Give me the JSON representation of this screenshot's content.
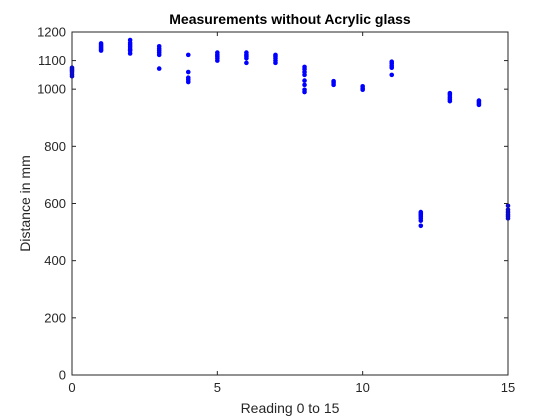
{
  "chart_data": {
    "type": "scatter",
    "title": "Measurements without Acrylic glass",
    "xlabel": "Reading 0 to 15",
    "ylabel": "Distance in mm",
    "xlim": [
      0,
      15
    ],
    "ylim": [
      0,
      1200
    ],
    "xticks": [
      0,
      5,
      10,
      15
    ],
    "yticks": [
      0,
      200,
      400,
      600,
      800,
      1000,
      1100,
      1200
    ],
    "grid": false,
    "marker_color": "#0000ff",
    "axis_color": "#262626",
    "series": [
      {
        "points": [
          [
            0,
            1045
          ],
          [
            0,
            1052
          ],
          [
            0,
            1060
          ],
          [
            0,
            1065
          ],
          [
            0,
            1070
          ],
          [
            0,
            1075
          ],
          [
            1,
            1135
          ],
          [
            1,
            1140
          ],
          [
            1,
            1145
          ],
          [
            1,
            1150
          ],
          [
            1,
            1155
          ],
          [
            1,
            1160
          ],
          [
            2,
            1125
          ],
          [
            2,
            1135
          ],
          [
            2,
            1140
          ],
          [
            2,
            1148
          ],
          [
            2,
            1155
          ],
          [
            2,
            1162
          ],
          [
            2,
            1172
          ],
          [
            3,
            1072
          ],
          [
            3,
            1120
          ],
          [
            3,
            1128
          ],
          [
            3,
            1135
          ],
          [
            3,
            1142
          ],
          [
            3,
            1150
          ],
          [
            4,
            1025
          ],
          [
            4,
            1033
          ],
          [
            4,
            1040
          ],
          [
            4,
            1060
          ],
          [
            4,
            1120
          ],
          [
            5,
            1100
          ],
          [
            5,
            1108
          ],
          [
            5,
            1115
          ],
          [
            5,
            1120
          ],
          [
            5,
            1128
          ],
          [
            6,
            1092
          ],
          [
            6,
            1108
          ],
          [
            6,
            1115
          ],
          [
            6,
            1120
          ],
          [
            6,
            1128
          ],
          [
            7,
            1092
          ],
          [
            7,
            1100
          ],
          [
            7,
            1108
          ],
          [
            7,
            1115
          ],
          [
            7,
            1120
          ],
          [
            8,
            990
          ],
          [
            8,
            998
          ],
          [
            8,
            1015
          ],
          [
            8,
            1030
          ],
          [
            8,
            1050
          ],
          [
            8,
            1060
          ],
          [
            8,
            1070
          ],
          [
            8,
            1078
          ],
          [
            9,
            1015
          ],
          [
            9,
            1022
          ],
          [
            9,
            1028
          ],
          [
            10,
            998
          ],
          [
            10,
            1003
          ],
          [
            10,
            1010
          ],
          [
            11,
            1050
          ],
          [
            11,
            1075
          ],
          [
            11,
            1082
          ],
          [
            11,
            1090
          ],
          [
            11,
            1096
          ],
          [
            12,
            522
          ],
          [
            12,
            540
          ],
          [
            12,
            548
          ],
          [
            12,
            555
          ],
          [
            12,
            560
          ],
          [
            12,
            565
          ],
          [
            12,
            570
          ],
          [
            13,
            958
          ],
          [
            13,
            965
          ],
          [
            13,
            972
          ],
          [
            13,
            980
          ],
          [
            13,
            986
          ],
          [
            14,
            945
          ],
          [
            14,
            950
          ],
          [
            14,
            955
          ],
          [
            14,
            960
          ],
          [
            15,
            548
          ],
          [
            15,
            556
          ],
          [
            15,
            562
          ],
          [
            15,
            570
          ],
          [
            15,
            578
          ],
          [
            15,
            592
          ]
        ]
      }
    ]
  }
}
